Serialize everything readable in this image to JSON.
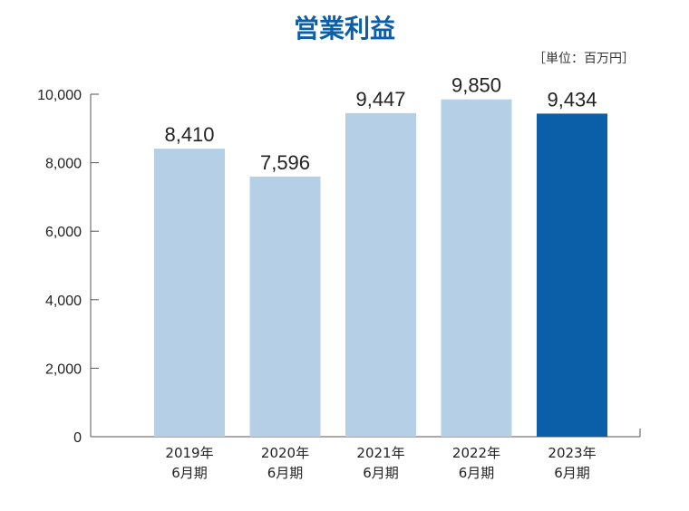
{
  "chart_data": {
    "type": "bar",
    "title": "営業利益",
    "unit_label": "［単位：百万円］",
    "categories": [
      [
        "2019年",
        "6月期"
      ],
      [
        "2020年",
        "6月期"
      ],
      [
        "2021年",
        "6月期"
      ],
      [
        "2022年",
        "6月期"
      ],
      [
        "2023年",
        "6月期"
      ]
    ],
    "values": [
      8410,
      7596,
      9447,
      9850,
      9434
    ],
    "value_labels": [
      "8,410",
      "7,596",
      "9,447",
      "9,850",
      "9,434"
    ],
    "ylim": [
      0,
      10000
    ],
    "yticks": [
      0,
      2000,
      4000,
      6000,
      8000,
      10000
    ],
    "ytick_labels": [
      "0",
      "2,000",
      "4,000",
      "6,000",
      "8,000",
      "10,000"
    ],
    "grid": false,
    "colors": {
      "bar": "#b5d0e6",
      "highlight": "#0b5fa8",
      "axis": "#555555"
    },
    "highlight_index": 4
  }
}
